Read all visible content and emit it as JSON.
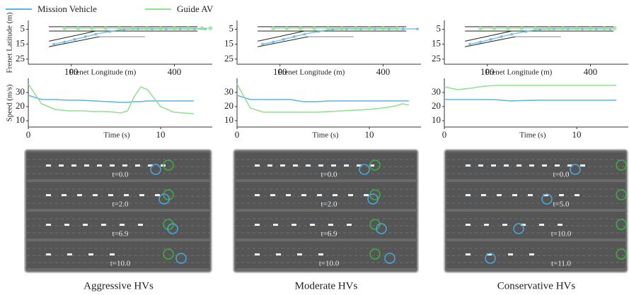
{
  "chart_data": [
    {
      "type": "trajectory",
      "xlabel": "Frenet Longitude (m)",
      "ylabel": "Frenet Latitude (m)",
      "xlim": [
        -25,
        510
      ],
      "ylim": [
        27,
        1
      ],
      "xticks": [
        100,
        400
      ],
      "yticks": [
        5,
        15,
        25
      ],
      "road_lines": [
        [
          [
            35,
            3.3
          ],
          [
            467,
            3.3
          ]
        ],
        [
          [
            35,
            6.2
          ],
          [
            467,
            6.2
          ]
        ],
        [
          [
            35,
            13
          ],
          [
            171,
            6.2
          ]
        ],
        [
          [
            35,
            16.7
          ],
          [
            182,
            10
          ]
        ],
        [
          [
            182,
            10
          ],
          [
            314,
            10
          ]
        ]
      ],
      "series": [
        {
          "name": "Mission Vehicle",
          "color": "#5bb4e5",
          "x": [
            49,
            80,
            110,
            141,
            171,
            212,
            253,
            294,
            335,
            376,
            417,
            458,
            490
          ],
          "y": [
            15,
            13.5,
            11.8,
            10,
            8.3,
            6.5,
            5,
            4.8,
            4.8,
            4.8,
            4.8,
            4.8,
            4.8
          ]
        },
        {
          "name": "Guide AV",
          "color": "#8fe08f",
          "x": [
            80,
            120,
            160,
            200,
            240,
            280,
            320,
            360,
            400,
            440,
            480,
            505
          ],
          "y": [
            4.3,
            4.3,
            4.3,
            4.3,
            4.3,
            4.3,
            4.3,
            4.3,
            4.3,
            4.3,
            4.3,
            4.3
          ]
        }
      ]
    },
    {
      "type": "trajectory",
      "xlabel": "Frenet Longitude (m)",
      "xlim": [
        -25,
        510
      ],
      "ylim": [
        27,
        1
      ],
      "xticks": [
        100,
        400
      ],
      "yticks": [
        5,
        15,
        25
      ],
      "road_lines": [
        [
          [
            35,
            3.3
          ],
          [
            467,
            3.3
          ]
        ],
        [
          [
            35,
            6.2
          ],
          [
            467,
            6.2
          ]
        ],
        [
          [
            35,
            13
          ],
          [
            171,
            6.2
          ]
        ],
        [
          [
            35,
            16.7
          ],
          [
            182,
            10
          ]
        ],
        [
          [
            182,
            10
          ],
          [
            314,
            10
          ]
        ]
      ],
      "series": [
        {
          "color": "#5bb4e5",
          "x": [
            49,
            80,
            110,
            141,
            171,
            212,
            253,
            294,
            335,
            376,
            417,
            458,
            500
          ],
          "y": [
            15,
            13.5,
            11.8,
            10,
            8.3,
            6.5,
            5,
            4.8,
            4.8,
            4.8,
            4.8,
            4.8,
            4.8
          ]
        },
        {
          "color": "#8fe08f",
          "x": [
            80,
            120,
            160,
            200,
            240,
            280,
            320,
            360,
            400,
            440
          ],
          "y": [
            4.3,
            4.3,
            4.3,
            4.3,
            4.3,
            4.3,
            4.3,
            4.3,
            4.3,
            4.3
          ]
        }
      ]
    },
    {
      "type": "trajectory",
      "xlabel": "Frenet Longitude (m)",
      "xlim": [
        -25,
        510
      ],
      "ylim": [
        27,
        1
      ],
      "xticks": [
        100,
        400
      ],
      "yticks": [
        5,
        15,
        25
      ],
      "road_lines": [
        [
          [
            35,
            3.3
          ],
          [
            467,
            3.3
          ]
        ],
        [
          [
            35,
            6.2
          ],
          [
            467,
            6.2
          ]
        ],
        [
          [
            35,
            13
          ],
          [
            171,
            6.2
          ]
        ],
        [
          [
            35,
            16.7
          ],
          [
            182,
            10
          ]
        ],
        [
          [
            182,
            10
          ],
          [
            314,
            10
          ]
        ]
      ],
      "series": [
        {
          "color": "#5bb4e5",
          "x": [
            49,
            80,
            110,
            141,
            171,
            212,
            253,
            294,
            335,
            376,
            417,
            458
          ],
          "y": [
            15,
            13.5,
            11.8,
            10,
            8.3,
            6.5,
            5,
            4.8,
            4.8,
            4.8,
            4.8,
            4.8
          ]
        },
        {
          "color": "#8fe08f",
          "x": [
            80,
            120,
            160,
            200,
            240,
            280,
            320,
            360,
            400,
            440,
            470
          ],
          "y": [
            4.3,
            4.3,
            4.3,
            4.3,
            4.3,
            4.3,
            4.3,
            4.3,
            4.3,
            4.3,
            4.3
          ]
        }
      ]
    },
    {
      "type": "line",
      "xlabel": "Time (s)",
      "ylabel": "Speed (m/s)",
      "xlim": [
        0,
        13.9
      ],
      "ylim": [
        7,
        38
      ],
      "xticks": [
        0,
        10
      ],
      "yticks": [
        10,
        20,
        30
      ],
      "x": [
        0,
        1,
        2,
        3,
        4,
        5,
        6,
        7,
        7.5,
        8,
        8.5,
        9,
        10,
        11,
        12.5
      ],
      "series": [
        {
          "color": "#5bb4e5",
          "values": [
            28,
            25,
            25,
            24.5,
            24.5,
            24,
            23.5,
            23,
            23,
            23.5,
            23.5,
            24,
            24,
            24,
            24
          ]
        },
        {
          "color": "#8fe08f",
          "values": [
            36,
            22,
            18,
            17,
            17,
            16.5,
            16.5,
            15.5,
            17,
            27,
            34,
            32,
            20,
            16,
            15
          ]
        }
      ]
    },
    {
      "type": "line",
      "xlabel": "Time (s)",
      "xlim": [
        0,
        13.9
      ],
      "ylim": [
        7,
        38
      ],
      "xticks": [
        0,
        10
      ],
      "yticks": [
        10,
        20,
        30
      ],
      "x": [
        0,
        1,
        2,
        3,
        4,
        5,
        6,
        7,
        8,
        9,
        10,
        11,
        12,
        12.5,
        13
      ],
      "series": [
        {
          "color": "#5bb4e5",
          "values": [
            28,
            25,
            25,
            25,
            25,
            23.5,
            23.5,
            24,
            24,
            24,
            24,
            24,
            24,
            24,
            24
          ]
        },
        {
          "color": "#8fe08f",
          "values": [
            36,
            19,
            16,
            16,
            16,
            16,
            16,
            16.5,
            17,
            17.5,
            18,
            19,
            20.5,
            22,
            21
          ]
        }
      ]
    },
    {
      "type": "line",
      "xlabel": "Time (s)",
      "xlim": [
        0,
        13.9
      ],
      "ylim": [
        7,
        38
      ],
      "xticks": [
        0,
        10
      ],
      "yticks": [
        10,
        20,
        30
      ],
      "x": [
        0,
        1,
        2,
        3,
        4,
        5,
        6,
        7,
        8,
        9,
        10,
        11,
        12,
        13
      ],
      "series": [
        {
          "color": "#5bb4e5",
          "values": [
            25,
            25,
            25,
            25,
            24.8,
            24,
            24.3,
            24.5,
            24.5,
            24.5,
            24.5,
            24.5,
            24.5,
            24.5
          ]
        },
        {
          "color": "#8fe08f",
          "values": [
            34,
            32,
            33,
            34.5,
            35,
            35,
            35,
            35,
            35,
            35,
            35,
            35,
            35,
            35
          ]
        }
      ]
    }
  ],
  "panels": [
    {
      "caption": "Aggressive HVs",
      "snapshots": [
        "t=0.0",
        "t=2.0",
        "t=6.9",
        "t=10.0"
      ]
    },
    {
      "caption": "Moderate HVs",
      "snapshots": [
        "t=0.0",
        "t=2.0",
        "t=6.9",
        "t=10.0"
      ]
    },
    {
      "caption": "Conservative HVs",
      "snapshots": [
        "t=0.0",
        "t=5.0",
        "t=10.0",
        "t=11.0"
      ]
    }
  ]
}
